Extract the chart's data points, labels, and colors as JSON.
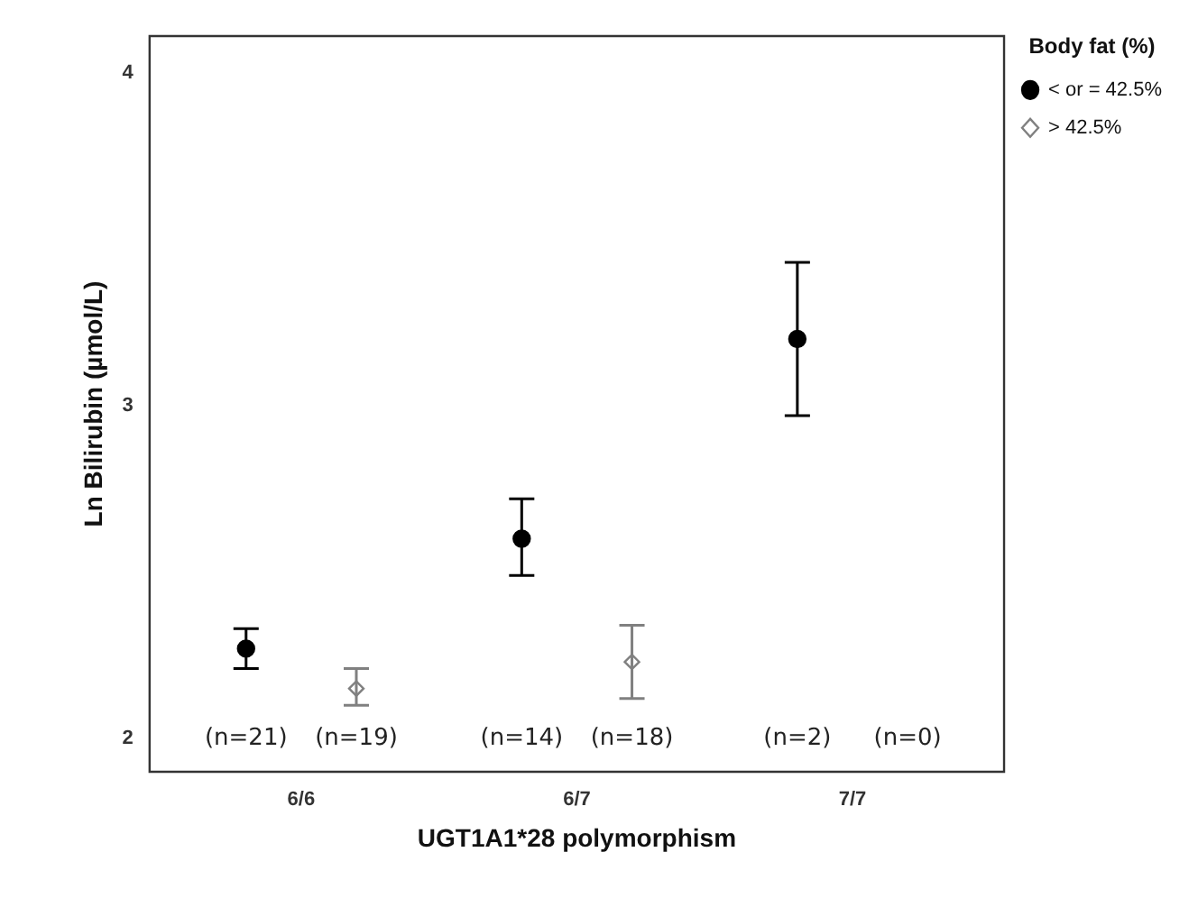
{
  "chart_data": {
    "type": "scatter",
    "xlabel": "UGT1A1*28 polymorphism",
    "ylabel": "Ln Bilirubin (µmol/L)",
    "legend_title": "Body fat (%)",
    "categories": [
      "6/6",
      "6/7",
      "7/7"
    ],
    "series": [
      {
        "name": "< or = 42.5%",
        "color": "#000000",
        "marker": "circle",
        "values": [
          2.27,
          2.6,
          3.2
        ],
        "errors": [
          [
            2.21,
            2.33
          ],
          [
            2.49,
            2.72
          ],
          [
            2.97,
            3.43
          ]
        ]
      },
      {
        "name": "> 42.5%",
        "color": "#808080",
        "marker": "diamond",
        "values": [
          2.15,
          2.23,
          null
        ],
        "errors": [
          [
            2.1,
            2.21
          ],
          [
            2.12,
            2.34
          ],
          null
        ]
      }
    ],
    "ylim": [
      1.9,
      4.11
    ],
    "yticks": [
      2,
      3,
      4
    ],
    "grid": false,
    "legend": "top right",
    "annotations": [
      "(n=21)",
      "(n=19)",
      "(n=14)",
      "(n=18)",
      "(n=2)",
      "(n=0)"
    ]
  }
}
